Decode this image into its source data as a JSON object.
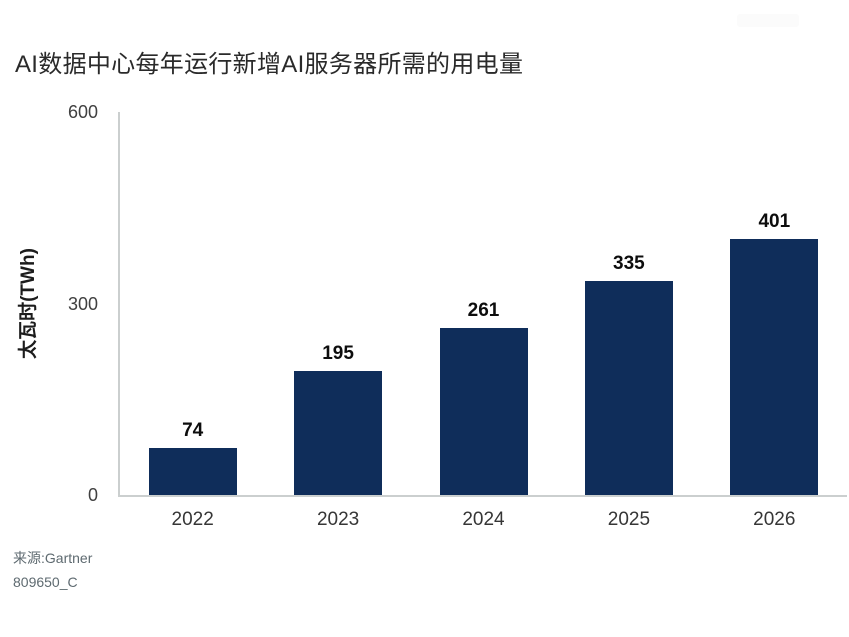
{
  "title": "AI数据中心每年运行新增AI服务器所需的用电量",
  "chart_data": {
    "type": "bar",
    "categories": [
      "2022",
      "2023",
      "2024",
      "2025",
      "2026"
    ],
    "values": [
      74,
      195,
      261,
      335,
      401
    ],
    "title": "AI数据中心每年运行新增AI服务器所需的用电量",
    "xlabel": "",
    "ylabel": "太瓦时(TWh)",
    "ylim": [
      0,
      600
    ],
    "yticks": [
      0,
      300,
      600
    ],
    "grid": false,
    "legend": "none",
    "bar_color": "#0f2d5a",
    "axis_color": "#cbcfcf"
  },
  "source": {
    "line1": "来源:Gartner",
    "line2": "809650_C"
  }
}
